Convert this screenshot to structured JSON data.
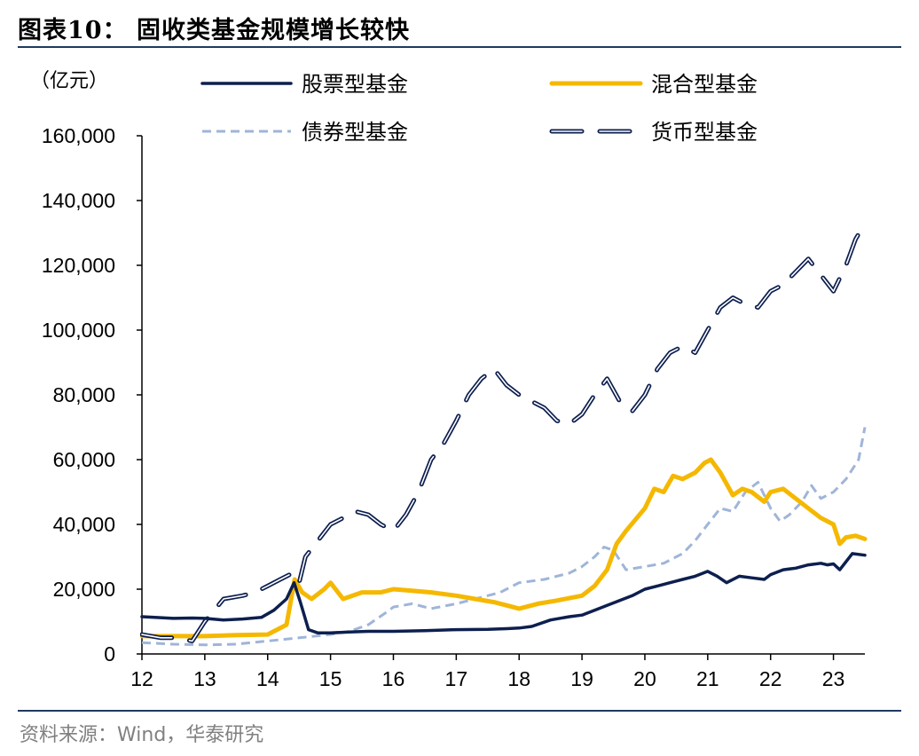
{
  "header": {
    "title": "图表10：  固收类基金规模增长较快"
  },
  "footer": {
    "source": "资料来源：Wind，华泰研究"
  },
  "chart_data": {
    "type": "line",
    "unit": "（亿元）",
    "ylim": [
      0,
      160000
    ],
    "yticks": [
      0,
      20000,
      40000,
      60000,
      80000,
      100000,
      120000,
      140000,
      160000
    ],
    "ytick_labels": [
      "0",
      "20,000",
      "40,000",
      "60,000",
      "80,000",
      "100,000",
      "120,000",
      "140,000",
      "160,000"
    ],
    "xlim": [
      12,
      23.5
    ],
    "xticks": [
      12,
      13,
      14,
      15,
      16,
      17,
      18,
      19,
      20,
      21,
      22,
      23
    ],
    "xtick_labels": [
      "12",
      "13",
      "14",
      "15",
      "16",
      "17",
      "18",
      "19",
      "20",
      "21",
      "22",
      "23"
    ],
    "legend_placement": "top",
    "series": [
      {
        "name": "股票型基金",
        "color": "#0d1f4f",
        "style": "solid",
        "x": [
          12.0,
          12.3,
          12.5,
          12.8,
          13.0,
          13.3,
          13.6,
          13.9,
          14.1,
          14.3,
          14.42,
          14.52,
          14.65,
          14.8,
          15.0,
          15.3,
          15.6,
          16.0,
          16.5,
          17.0,
          17.5,
          17.8,
          18.0,
          18.2,
          18.5,
          18.8,
          19.0,
          19.2,
          19.4,
          19.6,
          19.8,
          20.0,
          20.2,
          20.4,
          20.6,
          20.8,
          21.0,
          21.15,
          21.3,
          21.5,
          21.7,
          21.9,
          22.0,
          22.2,
          22.4,
          22.6,
          22.8,
          22.9,
          23.0,
          23.1,
          23.3,
          23.5
        ],
        "values": [
          11500,
          11200,
          11000,
          11100,
          11000,
          10500,
          10800,
          11300,
          13500,
          17000,
          22000,
          16000,
          7500,
          6500,
          6500,
          6800,
          7000,
          7000,
          7200,
          7500,
          7600,
          7800,
          8000,
          8500,
          10500,
          11500,
          12000,
          13500,
          15000,
          16500,
          18000,
          20000,
          21000,
          22000,
          23000,
          24000,
          25500,
          24000,
          22000,
          24000,
          23500,
          23000,
          24500,
          26000,
          26500,
          27500,
          28000,
          27500,
          27800,
          26000,
          31000,
          30500
        ]
      },
      {
        "name": "混合型基金",
        "color": "#f5b800",
        "style": "solid",
        "x": [
          12.0,
          12.5,
          13.0,
          13.5,
          14.0,
          14.3,
          14.43,
          14.55,
          14.7,
          14.9,
          15.0,
          15.2,
          15.5,
          15.8,
          16.0,
          16.3,
          16.6,
          17.0,
          17.3,
          17.6,
          17.9,
          18.0,
          18.3,
          18.6,
          19.0,
          19.2,
          19.4,
          19.55,
          19.7,
          20.0,
          20.15,
          20.3,
          20.45,
          20.6,
          20.8,
          20.95,
          21.05,
          21.2,
          21.4,
          21.55,
          21.7,
          21.9,
          22.0,
          22.2,
          22.4,
          22.6,
          22.8,
          23.0,
          23.1,
          23.2,
          23.35,
          23.5
        ],
        "values": [
          5500,
          5500,
          5500,
          5800,
          6000,
          9000,
          23000,
          19000,
          17000,
          20000,
          22000,
          17000,
          19000,
          19000,
          20000,
          19500,
          19000,
          18000,
          17000,
          16000,
          14500,
          14000,
          15500,
          16500,
          18000,
          21000,
          26000,
          34000,
          38000,
          45000,
          51000,
          50000,
          55000,
          54000,
          56000,
          59000,
          60000,
          56000,
          49000,
          51000,
          50000,
          47000,
          50000,
          51000,
          48000,
          45000,
          42000,
          40000,
          34000,
          36000,
          36500,
          35500
        ]
      },
      {
        "name": "债券型基金",
        "color": "#9fb5d8",
        "style": "dashed",
        "x": [
          12.0,
          12.5,
          13.0,
          13.5,
          14.0,
          14.5,
          15.0,
          15.3,
          15.6,
          15.9,
          16.0,
          16.3,
          16.6,
          17.0,
          17.3,
          17.7,
          18.0,
          18.4,
          18.8,
          19.0,
          19.2,
          19.35,
          19.5,
          19.7,
          20.0,
          20.3,
          20.6,
          20.8,
          21.0,
          21.2,
          21.4,
          21.6,
          21.8,
          22.0,
          22.15,
          22.3,
          22.5,
          22.65,
          22.8,
          23.0,
          23.2,
          23.4,
          23.5
        ],
        "values": [
          3500,
          3000,
          2800,
          3000,
          4000,
          5000,
          6000,
          7000,
          9000,
          13000,
          14500,
          15500,
          14000,
          15500,
          17000,
          19000,
          22000,
          23000,
          25000,
          27000,
          30000,
          33000,
          32000,
          26000,
          27000,
          28000,
          31000,
          35000,
          40000,
          45000,
          44000,
          50000,
          53000,
          45000,
          41000,
          43000,
          47000,
          52000,
          48000,
          50000,
          54000,
          60000,
          70000
        ]
      },
      {
        "name": "货币型基金",
        "color": "#0d1f4f",
        "style": "double-dashed",
        "x": [
          12.0,
          12.3,
          12.5,
          12.8,
          13.0,
          13.3,
          13.6,
          13.8,
          14.0,
          14.2,
          14.4,
          14.5,
          14.6,
          14.8,
          15.0,
          15.2,
          15.4,
          15.6,
          15.8,
          16.0,
          16.2,
          16.4,
          16.6,
          16.8,
          17.0,
          17.2,
          17.4,
          17.6,
          17.8,
          18.0,
          18.2,
          18.4,
          18.6,
          18.8,
          19.0,
          19.2,
          19.4,
          19.6,
          19.8,
          20.0,
          20.2,
          20.4,
          20.6,
          20.8,
          21.0,
          21.2,
          21.4,
          21.6,
          21.8,
          22.0,
          22.2,
          22.4,
          22.6,
          22.8,
          23.0,
          23.2,
          23.35,
          23.5
        ],
        "values": [
          6000,
          5000,
          5000,
          4000,
          10000,
          17000,
          18000,
          19000,
          21000,
          23000,
          25000,
          22000,
          30000,
          35000,
          40000,
          42000,
          44000,
          43000,
          40000,
          38000,
          43000,
          50000,
          60000,
          65000,
          72000,
          80000,
          85000,
          88000,
          83000,
          80000,
          78000,
          76000,
          72000,
          71000,
          74000,
          80000,
          85000,
          78000,
          75000,
          80000,
          88000,
          93000,
          95000,
          93000,
          100000,
          107000,
          110000,
          108000,
          107000,
          112000,
          114000,
          118000,
          122000,
          117000,
          112000,
          120000,
          128000,
          133000
        ]
      }
    ]
  }
}
